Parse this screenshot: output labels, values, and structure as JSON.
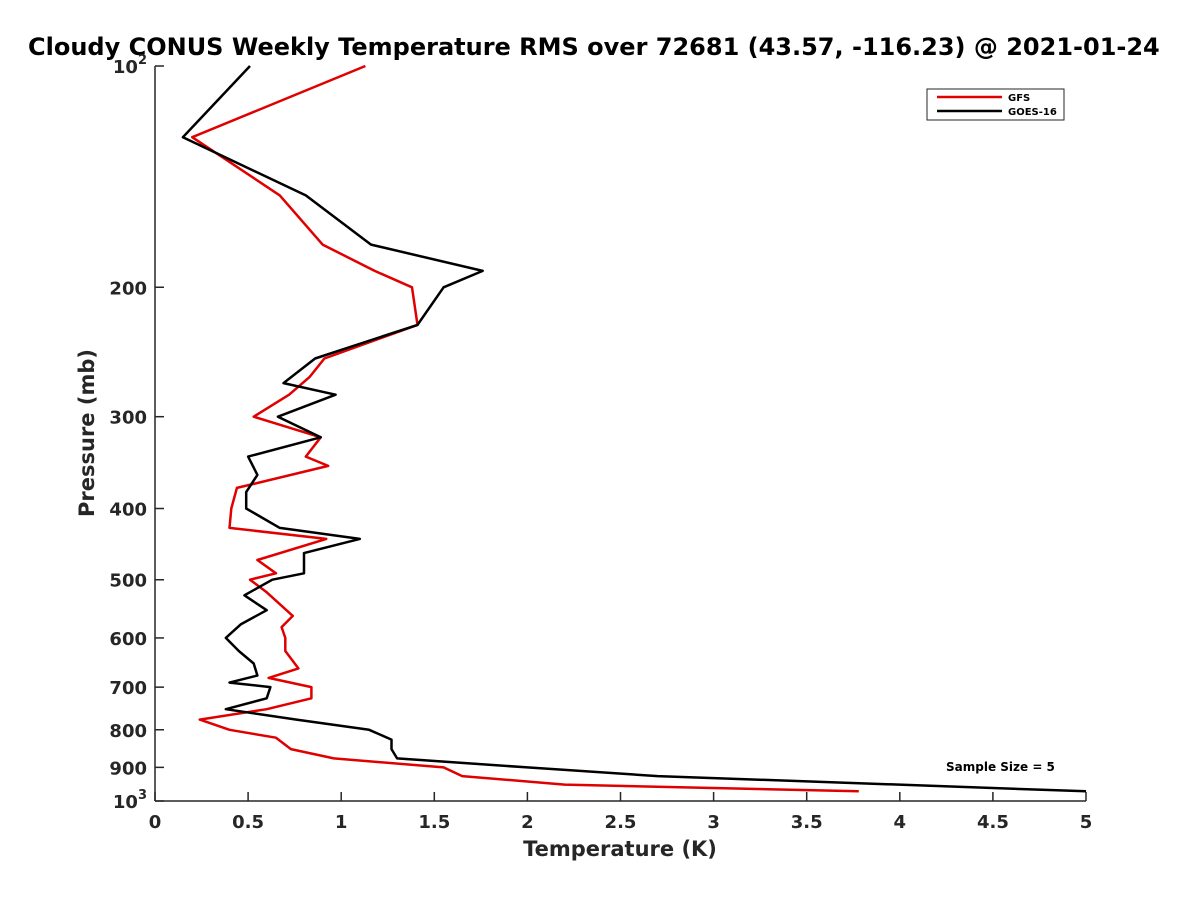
{
  "chart_data": {
    "type": "line",
    "title": "Cloudy CONUS Weekly Temperature RMS over 72681 (43.57, -116.23) @ 2021-01-24",
    "xlabel": "Temperature (K)",
    "ylabel": "Pressure (mb)",
    "xlim": [
      0,
      5
    ],
    "ylim": [
      1000,
      100
    ],
    "yscale": "log",
    "y_reversed": true,
    "grid": false,
    "legend_position": "top-right",
    "x_ticks": [
      0,
      0.5,
      1,
      1.5,
      2,
      2.5,
      3,
      3.5,
      4,
      4.5,
      5
    ],
    "x_tick_labels": [
      "0",
      "0.5",
      "1",
      "1.5",
      "2",
      "2.5",
      "3",
      "3.5",
      "4",
      "4.5",
      "5"
    ],
    "y_ticks": [
      100,
      200,
      300,
      400,
      500,
      600,
      700,
      800,
      900,
      1000
    ],
    "y_tick_labels": [
      {
        "base": "10",
        "exp": "2"
      },
      {
        "base": "200",
        "exp": ""
      },
      {
        "base": "300",
        "exp": ""
      },
      {
        "base": "400",
        "exp": ""
      },
      {
        "base": "500",
        "exp": ""
      },
      {
        "base": "600",
        "exp": ""
      },
      {
        "base": "700",
        "exp": ""
      },
      {
        "base": "800",
        "exp": ""
      },
      {
        "base": "900",
        "exp": ""
      },
      {
        "base": "10",
        "exp": "3"
      }
    ],
    "annotation": "Sample Size = 5",
    "series": [
      {
        "name": "GFS",
        "color": "#e00000",
        "points": [
          [
            1.13,
            100
          ],
          [
            0.2,
            125
          ],
          [
            0.67,
            150
          ],
          [
            0.9,
            175
          ],
          [
            1.18,
            190
          ],
          [
            1.38,
            200
          ],
          [
            1.41,
            225
          ],
          [
            0.91,
            250
          ],
          [
            0.83,
            265
          ],
          [
            0.72,
            280
          ],
          [
            0.53,
            300
          ],
          [
            0.89,
            320
          ],
          [
            0.81,
            340
          ],
          [
            0.93,
            350
          ],
          [
            0.44,
            375
          ],
          [
            0.41,
            400
          ],
          [
            0.4,
            425
          ],
          [
            0.92,
            440
          ],
          [
            0.55,
            470
          ],
          [
            0.65,
            490
          ],
          [
            0.51,
            500
          ],
          [
            0.6,
            520
          ],
          [
            0.74,
            560
          ],
          [
            0.68,
            580
          ],
          [
            0.7,
            600
          ],
          [
            0.7,
            625
          ],
          [
            0.77,
            660
          ],
          [
            0.61,
            680
          ],
          [
            0.84,
            700
          ],
          [
            0.84,
            725
          ],
          [
            0.6,
            750
          ],
          [
            0.24,
            775
          ],
          [
            0.4,
            800
          ],
          [
            0.65,
            820
          ],
          [
            0.73,
            850
          ],
          [
            0.96,
            875
          ],
          [
            1.55,
            900
          ],
          [
            1.65,
            925
          ],
          [
            2.2,
            950
          ],
          [
            3.78,
            970
          ]
        ]
      },
      {
        "name": "GOES-16",
        "color": "#000000",
        "points": [
          [
            0.51,
            100
          ],
          [
            0.15,
            125
          ],
          [
            0.81,
            150
          ],
          [
            1.16,
            175
          ],
          [
            1.76,
            190
          ],
          [
            1.55,
            200
          ],
          [
            1.41,
            225
          ],
          [
            0.86,
            250
          ],
          [
            0.69,
            270
          ],
          [
            0.97,
            280
          ],
          [
            0.66,
            300
          ],
          [
            0.89,
            320
          ],
          [
            0.5,
            340
          ],
          [
            0.55,
            360
          ],
          [
            0.49,
            380
          ],
          [
            0.49,
            400
          ],
          [
            0.67,
            425
          ],
          [
            1.1,
            440
          ],
          [
            0.8,
            460
          ],
          [
            0.8,
            490
          ],
          [
            0.63,
            500
          ],
          [
            0.48,
            525
          ],
          [
            0.6,
            550
          ],
          [
            0.46,
            575
          ],
          [
            0.38,
            600
          ],
          [
            0.45,
            625
          ],
          [
            0.53,
            650
          ],
          [
            0.55,
            675
          ],
          [
            0.4,
            690
          ],
          [
            0.62,
            700
          ],
          [
            0.6,
            725
          ],
          [
            0.38,
            750
          ],
          [
            0.76,
            775
          ],
          [
            1.15,
            800
          ],
          [
            1.27,
            825
          ],
          [
            1.27,
            850
          ],
          [
            1.3,
            875
          ],
          [
            2.0,
            900
          ],
          [
            2.7,
            925
          ],
          [
            5.0,
            970
          ]
        ]
      }
    ]
  }
}
